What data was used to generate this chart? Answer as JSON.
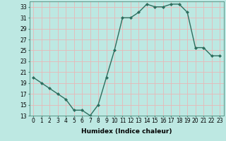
{
  "x": [
    0,
    1,
    2,
    3,
    4,
    5,
    6,
    7,
    8,
    9,
    10,
    11,
    12,
    13,
    14,
    15,
    16,
    17,
    18,
    19,
    20,
    21,
    22,
    23
  ],
  "y": [
    20,
    19,
    18,
    17,
    16,
    14,
    14,
    13,
    15,
    20,
    25,
    31,
    31,
    32,
    33.5,
    33,
    33,
    33.5,
    33.5,
    32,
    25.5,
    25.5,
    24,
    24
  ],
  "line_color": "#2d6e5e",
  "marker": "D",
  "marker_size": 2.0,
  "bg_color": "#bde8e2",
  "grid_color": "#e8b8b8",
  "title": "",
  "xlabel": "Humidex (Indice chaleur)",
  "ylabel": "",
  "xlim": [
    -0.5,
    23.5
  ],
  "ylim": [
    13,
    34
  ],
  "yticks": [
    13,
    15,
    17,
    19,
    21,
    23,
    25,
    27,
    29,
    31,
    33
  ],
  "xticks": [
    0,
    1,
    2,
    3,
    4,
    5,
    6,
    7,
    8,
    9,
    10,
    11,
    12,
    13,
    14,
    15,
    16,
    17,
    18,
    19,
    20,
    21,
    22,
    23
  ],
  "xlabel_fontsize": 6.5,
  "tick_fontsize": 5.5,
  "line_width": 1.0
}
